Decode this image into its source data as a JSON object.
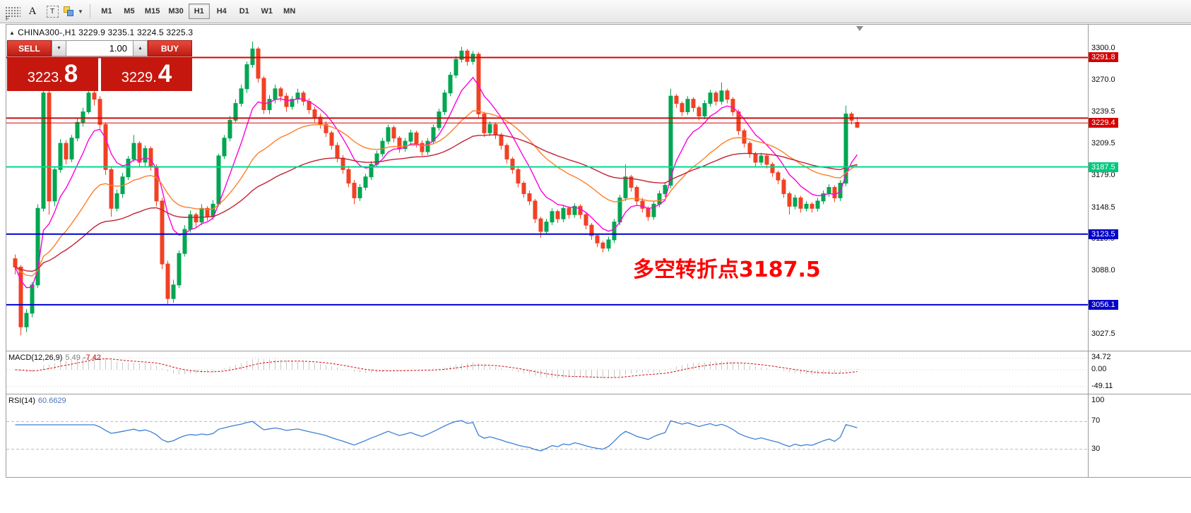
{
  "toolbar": {
    "grid_badge": "F",
    "tool_a": "A",
    "tool_t": "T",
    "caret_down": "▼",
    "timeframes": [
      {
        "label": "M1",
        "active": false
      },
      {
        "label": "M5",
        "active": false
      },
      {
        "label": "M15",
        "active": false
      },
      {
        "label": "M30",
        "active": false
      },
      {
        "label": "H1",
        "active": true
      },
      {
        "label": "H4",
        "active": false
      },
      {
        "label": "D1",
        "active": false
      },
      {
        "label": "W1",
        "active": false
      },
      {
        "label": "MN",
        "active": false
      }
    ]
  },
  "chart": {
    "collapse_icon": "▲",
    "header": "CHINA300-,H1  3229.9 3235.1 3224.5 3225.3",
    "symbol": "CHINA300-",
    "period": "H1",
    "ohlc": {
      "open": "3229.9",
      "high": "3235.1",
      "low": "3224.5",
      "close": "3225.3"
    },
    "trade_panel": {
      "sell_label": "SELL",
      "buy_label": "BUY",
      "volume": "1.00",
      "spinner_down": "▼",
      "spinner_up": "▲",
      "sell_price_main": "3223.",
      "sell_price_big": "8",
      "buy_price_main": "3229.",
      "buy_price_big": "4"
    },
    "annotation": {
      "text": "多空转折点3187.5",
      "color": "#ff0000"
    },
    "axis_labels": [
      "3300.0",
      "3270.0",
      "3239.5",
      "3209.5",
      "3179.0",
      "3148.5",
      "3118.5",
      "3088.0",
      "3027.5"
    ]
  },
  "chart_data": {
    "type": "candlestick",
    "symbol": "CHINA300-",
    "timeframe": "H1",
    "title": "CHINA300- H1 candlestick chart",
    "ylim": [
      3015,
      3315
    ],
    "grid": false,
    "colors": {
      "up": "#00a651",
      "down": "#f14124",
      "background": "#ffffff"
    },
    "moving_averages": [
      {
        "name": "ma-fast",
        "period": 8,
        "method": "ema",
        "color": "#ff00dd"
      },
      {
        "name": "ma-mid",
        "period": 24,
        "method": "ema",
        "color": "#ff7f27"
      },
      {
        "name": "ma-slow",
        "period": 55,
        "method": "ema",
        "color": "#c22033"
      }
    ],
    "levels": [
      {
        "price": 3291.8,
        "color": "#e00000",
        "width": 2,
        "label": "3291.8",
        "chip": "#d40000"
      },
      {
        "price": 3234.0,
        "color": "#c01010",
        "width": 2,
        "label": null,
        "chip": null
      },
      {
        "price": 3229.4,
        "color": "#e00000",
        "width": 1,
        "label": "3229.4",
        "chip": "#d40000"
      },
      {
        "price": 3187.5,
        "color": "#00d890",
        "width": 2,
        "label": "3187.5",
        "chip": "#00c87d"
      },
      {
        "price": 3123.5,
        "color": "#0000d0",
        "width": 2,
        "label": "3123.5",
        "chip": "#0000c8"
      },
      {
        "price": 3056.1,
        "color": "#0000d0",
        "width": 2,
        "label": "3056.1",
        "chip": "#0000c8"
      }
    ],
    "candles": [
      [
        3100,
        3104,
        3085,
        3092
      ],
      [
        3092,
        3094,
        3027,
        3035
      ],
      [
        3035,
        3052,
        3030,
        3048
      ],
      [
        3048,
        3078,
        3044,
        3075
      ],
      [
        3075,
        3152,
        3072,
        3148
      ],
      [
        3148,
        3268,
        3145,
        3258
      ],
      [
        3258,
        3270,
        3142,
        3155
      ],
      [
        3155,
        3188,
        3150,
        3185
      ],
      [
        3185,
        3214,
        3182,
        3210
      ],
      [
        3210,
        3213,
        3190,
        3195
      ],
      [
        3195,
        3218,
        3192,
        3215
      ],
      [
        3215,
        3234,
        3212,
        3230
      ],
      [
        3230,
        3244,
        3226,
        3240
      ],
      [
        3240,
        3266,
        3238,
        3258
      ],
      [
        3258,
        3260,
        3246,
        3252
      ],
      [
        3252,
        3255,
        3224,
        3228
      ],
      [
        3228,
        3230,
        3180,
        3185
      ],
      [
        3185,
        3188,
        3140,
        3148
      ],
      [
        3148,
        3166,
        3145,
        3162
      ],
      [
        3162,
        3182,
        3158,
        3178
      ],
      [
        3178,
        3198,
        3175,
        3195
      ],
      [
        3195,
        3218,
        3192,
        3210
      ],
      [
        3210,
        3212,
        3188,
        3192
      ],
      [
        3192,
        3208,
        3188,
        3205
      ],
      [
        3205,
        3207,
        3184,
        3188
      ],
      [
        3188,
        3190,
        3150,
        3155
      ],
      [
        3155,
        3158,
        3090,
        3095
      ],
      [
        3095,
        3098,
        3056,
        3062
      ],
      [
        3062,
        3080,
        3058,
        3075
      ],
      [
        3075,
        3108,
        3072,
        3105
      ],
      [
        3105,
        3132,
        3102,
        3128
      ],
      [
        3128,
        3146,
        3125,
        3142
      ],
      [
        3142,
        3144,
        3130,
        3135
      ],
      [
        3135,
        3152,
        3132,
        3148
      ],
      [
        3148,
        3150,
        3136,
        3140
      ],
      [
        3140,
        3156,
        3137,
        3152
      ],
      [
        3152,
        3200,
        3150,
        3198
      ],
      [
        3198,
        3218,
        3195,
        3215
      ],
      [
        3215,
        3236,
        3212,
        3232
      ],
      [
        3232,
        3252,
        3230,
        3248
      ],
      [
        3248,
        3266,
        3245,
        3262
      ],
      [
        3262,
        3288,
        3258,
        3285
      ],
      [
        3285,
        3307,
        3282,
        3300
      ],
      [
        3300,
        3302,
        3268,
        3272
      ],
      [
        3272,
        3274,
        3238,
        3242
      ],
      [
        3242,
        3256,
        3238,
        3252
      ],
      [
        3252,
        3266,
        3248,
        3262
      ],
      [
        3262,
        3264,
        3250,
        3255
      ],
      [
        3255,
        3258,
        3240,
        3245
      ],
      [
        3245,
        3255,
        3242,
        3252
      ],
      [
        3252,
        3262,
        3248,
        3258
      ],
      [
        3258,
        3260,
        3246,
        3250
      ],
      [
        3250,
        3253,
        3238,
        3242
      ],
      [
        3242,
        3245,
        3230,
        3235
      ],
      [
        3235,
        3238,
        3224,
        3228
      ],
      [
        3228,
        3231,
        3216,
        3220
      ],
      [
        3220,
        3222,
        3204,
        3208
      ],
      [
        3208,
        3211,
        3192,
        3196
      ],
      [
        3196,
        3199,
        3181,
        3185
      ],
      [
        3185,
        3188,
        3168,
        3172
      ],
      [
        3172,
        3175,
        3152,
        3158
      ],
      [
        3158,
        3171,
        3155,
        3168
      ],
      [
        3168,
        3181,
        3165,
        3178
      ],
      [
        3178,
        3193,
        3175,
        3190
      ],
      [
        3190,
        3203,
        3187,
        3200
      ],
      [
        3200,
        3215,
        3197,
        3212
      ],
      [
        3212,
        3228,
        3209,
        3225
      ],
      [
        3225,
        3227,
        3211,
        3215
      ],
      [
        3215,
        3217,
        3201,
        3205
      ],
      [
        3205,
        3215,
        3202,
        3212
      ],
      [
        3212,
        3223,
        3209,
        3220
      ],
      [
        3220,
        3222,
        3206,
        3210
      ],
      [
        3210,
        3213,
        3198,
        3202
      ],
      [
        3202,
        3215,
        3199,
        3212
      ],
      [
        3212,
        3228,
        3209,
        3225
      ],
      [
        3225,
        3243,
        3222,
        3240
      ],
      [
        3240,
        3261,
        3237,
        3258
      ],
      [
        3258,
        3278,
        3255,
        3275
      ],
      [
        3275,
        3293,
        3272,
        3290
      ],
      [
        3290,
        3302,
        3287,
        3298
      ],
      [
        3298,
        3300,
        3284,
        3288
      ],
      [
        3288,
        3298,
        3285,
        3295
      ],
      [
        3295,
        3297,
        3234,
        3238
      ],
      [
        3238,
        3240,
        3216,
        3220
      ],
      [
        3220,
        3231,
        3217,
        3228
      ],
      [
        3228,
        3230,
        3214,
        3218
      ],
      [
        3218,
        3220,
        3204,
        3208
      ],
      [
        3208,
        3210,
        3191,
        3195
      ],
      [
        3195,
        3197,
        3181,
        3185
      ],
      [
        3185,
        3187,
        3168,
        3172
      ],
      [
        3172,
        3174,
        3158,
        3162
      ],
      [
        3162,
        3165,
        3151,
        3155
      ],
      [
        3155,
        3157,
        3134,
        3138
      ],
      [
        3138,
        3140,
        3120,
        3126
      ],
      [
        3126,
        3138,
        3123,
        3135
      ],
      [
        3135,
        3148,
        3132,
        3145
      ],
      [
        3145,
        3147,
        3134,
        3138
      ],
      [
        3138,
        3151,
        3135,
        3148
      ],
      [
        3148,
        3150,
        3138,
        3142
      ],
      [
        3142,
        3153,
        3139,
        3150
      ],
      [
        3150,
        3152,
        3138,
        3142
      ],
      [
        3142,
        3144,
        3128,
        3132
      ],
      [
        3132,
        3134,
        3118,
        3122
      ],
      [
        3122,
        3124,
        3111,
        3115
      ],
      [
        3115,
        3117,
        3106,
        3110
      ],
      [
        3110,
        3121,
        3107,
        3118
      ],
      [
        3118,
        3138,
        3115,
        3135
      ],
      [
        3135,
        3161,
        3132,
        3158
      ],
      [
        3158,
        3190,
        3155,
        3178
      ],
      [
        3178,
        3180,
        3164,
        3168
      ],
      [
        3168,
        3170,
        3151,
        3155
      ],
      [
        3155,
        3158,
        3144,
        3148
      ],
      [
        3148,
        3150,
        3136,
        3140
      ],
      [
        3140,
        3155,
        3137,
        3152
      ],
      [
        3152,
        3165,
        3149,
        3162
      ],
      [
        3162,
        3173,
        3159,
        3170
      ],
      [
        3170,
        3262,
        3167,
        3255
      ],
      [
        3255,
        3257,
        3244,
        3248
      ],
      [
        3248,
        3250,
        3236,
        3240
      ],
      [
        3240,
        3255,
        3237,
        3252
      ],
      [
        3252,
        3254,
        3240,
        3244
      ],
      [
        3244,
        3246,
        3232,
        3236
      ],
      [
        3236,
        3251,
        3233,
        3248
      ],
      [
        3248,
        3261,
        3245,
        3258
      ],
      [
        3258,
        3260,
        3246,
        3250
      ],
      [
        3250,
        3268,
        3247,
        3260
      ],
      [
        3260,
        3262,
        3248,
        3252
      ],
      [
        3252,
        3254,
        3236,
        3240
      ],
      [
        3240,
        3242,
        3218,
        3222
      ],
      [
        3222,
        3224,
        3206,
        3210
      ],
      [
        3210,
        3212,
        3196,
        3200
      ],
      [
        3200,
        3202,
        3188,
        3192
      ],
      [
        3192,
        3201,
        3189,
        3198
      ],
      [
        3198,
        3200,
        3186,
        3190
      ],
      [
        3190,
        3192,
        3178,
        3182
      ],
      [
        3182,
        3184,
        3171,
        3175
      ],
      [
        3175,
        3177,
        3158,
        3162
      ],
      [
        3162,
        3164,
        3142,
        3150
      ],
      [
        3150,
        3161,
        3147,
        3158
      ],
      [
        3158,
        3160,
        3144,
        3148
      ],
      [
        3148,
        3155,
        3145,
        3152
      ],
      [
        3152,
        3154,
        3144,
        3148
      ],
      [
        3148,
        3158,
        3145,
        3155
      ],
      [
        3155,
        3165,
        3152,
        3162
      ],
      [
        3162,
        3171,
        3159,
        3168
      ],
      [
        3168,
        3170,
        3154,
        3158
      ],
      [
        3158,
        3175,
        3155,
        3172
      ],
      [
        3172,
        3246,
        3169,
        3238
      ],
      [
        3238,
        3240,
        3228,
        3232
      ],
      [
        3229.9,
        3235.1,
        3224.5,
        3225.3
      ]
    ]
  },
  "macd": {
    "label": "MACD(12,26,9)",
    "value_main": "5.49",
    "value_signal": "-7.42",
    "params": [
      12,
      26,
      9
    ],
    "axis": [
      "34.72",
      "0.00",
      "-49.11"
    ],
    "colors": {
      "histogram": "#c8c8c8",
      "signal": "#d01010"
    }
  },
  "rsi": {
    "label": "RSI(14)",
    "value": "60.6629",
    "period": 14,
    "axis": [
      "100",
      "70",
      "30"
    ],
    "levels": [
      70,
      30
    ],
    "color": "#3d7fd6"
  }
}
